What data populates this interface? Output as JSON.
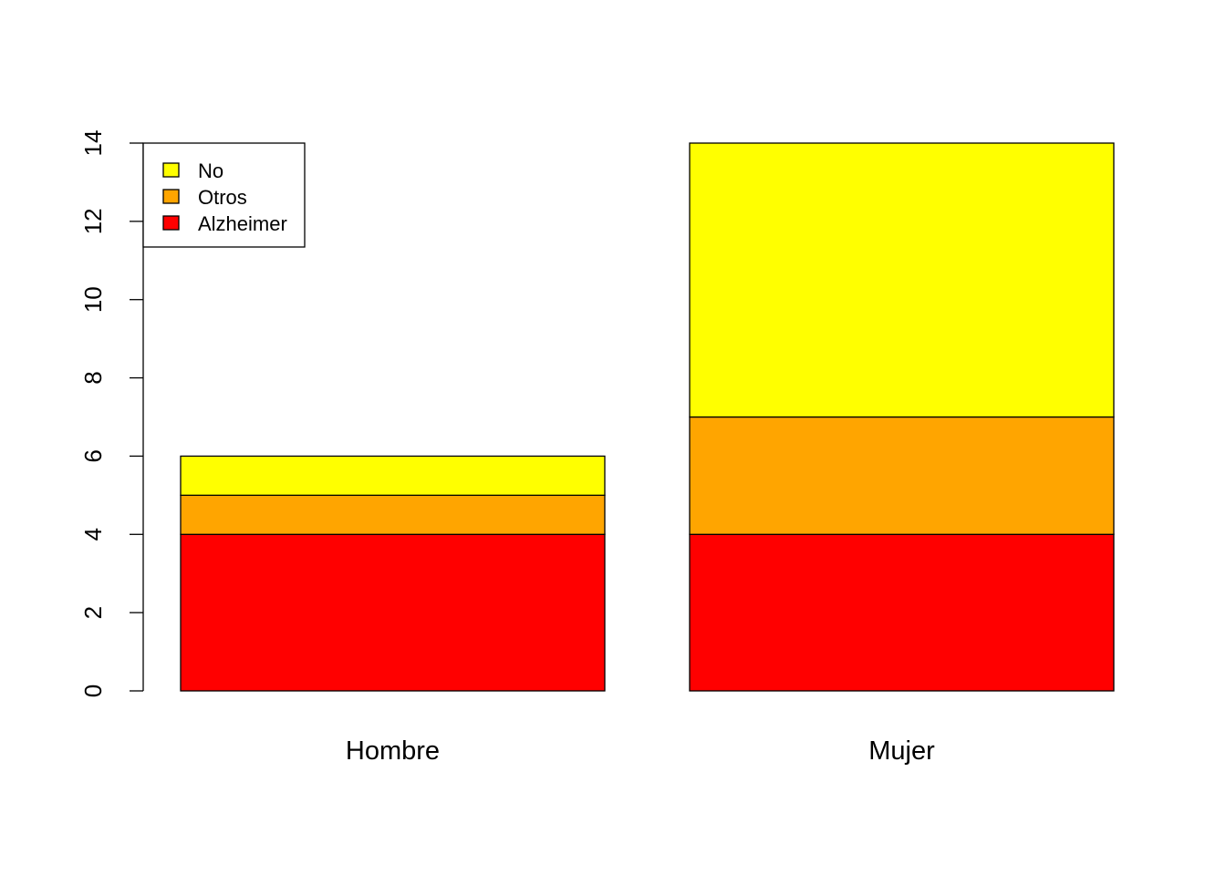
{
  "chart_data": {
    "type": "bar",
    "stacked": true,
    "categories": [
      "Hombre",
      "Mujer"
    ],
    "series": [
      {
        "name": "Alzheimer",
        "values": [
          4,
          4
        ],
        "color": "#FF0000"
      },
      {
        "name": "Otros",
        "values": [
          1,
          3
        ],
        "color": "#FFA500"
      },
      {
        "name": "No",
        "values": [
          1,
          7
        ],
        "color": "#FFFF00"
      }
    ],
    "title": "",
    "xlabel": "",
    "ylabel": "",
    "ylim": [
      0,
      14
    ],
    "yticks": [
      0,
      2,
      4,
      6,
      8,
      10,
      12,
      14
    ],
    "grid": false,
    "legend": {
      "placement": "top-left",
      "order": [
        "No",
        "Otros",
        "Alzheimer"
      ]
    }
  }
}
